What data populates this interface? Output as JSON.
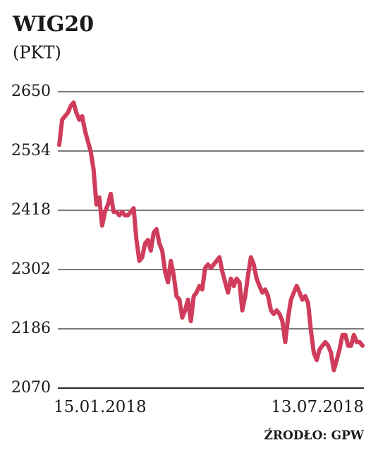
{
  "chart_data": {
    "type": "line",
    "title": "WIG20",
    "subtitle": "(PKT)",
    "source": "ŹRODŁO: GPW",
    "categories": [
      "15.01.2018",
      null,
      null,
      null,
      null,
      null,
      null,
      null,
      null,
      null,
      null,
      null,
      null,
      null,
      null,
      null,
      null,
      null,
      null,
      null,
      null,
      null,
      null,
      null,
      null,
      null,
      null,
      null,
      null,
      null,
      null,
      null,
      null,
      null,
      null,
      null,
      null,
      null,
      null,
      null,
      null,
      null,
      null,
      null,
      null,
      null,
      null,
      null,
      null,
      null,
      null,
      null,
      null,
      null,
      null,
      null,
      null,
      null,
      null,
      null,
      null,
      null,
      null,
      null,
      null,
      null,
      null,
      null,
      null,
      null,
      null,
      null,
      null,
      null,
      null,
      null,
      null,
      null,
      null,
      null,
      null,
      null,
      null,
      null,
      null,
      null,
      null,
      null,
      null,
      null,
      null,
      null,
      null,
      null,
      null,
      null,
      null,
      null,
      null,
      null,
      null,
      null,
      null,
      null,
      null,
      null,
      "13.07.2018"
    ],
    "values": [
      2546,
      2595,
      2602,
      2609,
      2622,
      2629,
      2609,
      2595,
      2602,
      2574,
      2553,
      2533,
      2498,
      2429,
      2443,
      2388,
      2415,
      2429,
      2450,
      2415,
      2415,
      2408,
      2415,
      2408,
      2408,
      2415,
      2422,
      2360,
      2319,
      2326,
      2353,
      2360,
      2339,
      2374,
      2381,
      2353,
      2339,
      2298,
      2277,
      2319,
      2291,
      2250,
      2243,
      2208,
      2222,
      2243,
      2201,
      2250,
      2257,
      2270,
      2263,
      2305,
      2312,
      2305,
      2312,
      2319,
      2326,
      2298,
      2277,
      2257,
      2284,
      2270,
      2284,
      2277,
      2222,
      2250,
      2291,
      2326,
      2312,
      2284,
      2270,
      2257,
      2263,
      2250,
      2222,
      2215,
      2222,
      2215,
      2201,
      2160,
      2208,
      2243,
      2257,
      2270,
      2257,
      2243,
      2250,
      2236,
      2181,
      2139,
      2125,
      2146,
      2153,
      2160,
      2153,
      2139,
      2105,
      2125,
      2146,
      2174,
      2174,
      2153,
      2153,
      2174,
      2160,
      2160,
      2153
    ],
    "color": "#d03c5c",
    "ylim": [
      2070,
      2650
    ],
    "yticks": [
      2070,
      2186,
      2302,
      2418,
      2534,
      2650
    ],
    "grid": true
  }
}
